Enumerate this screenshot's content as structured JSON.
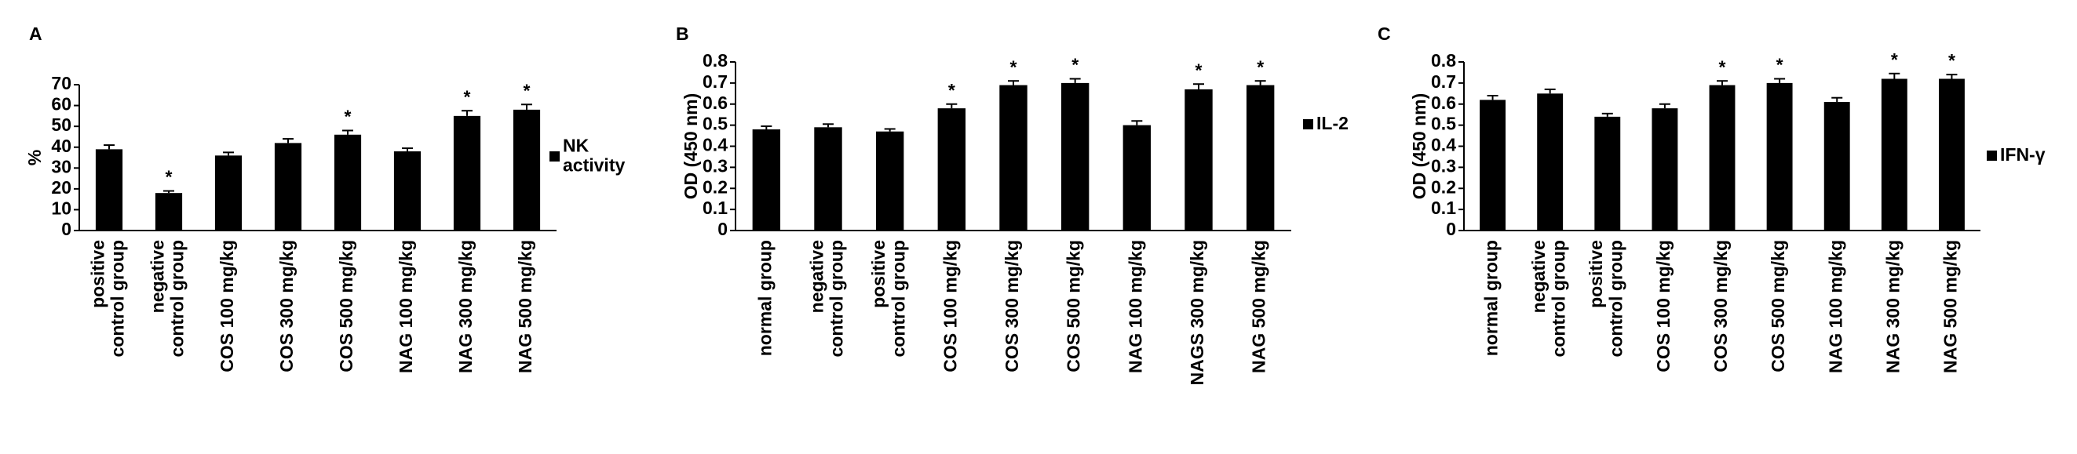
{
  "chart_data": [
    {
      "type": "bar",
      "label": "A",
      "ylabel": "%",
      "categories": [
        "positive control group",
        "negative control group",
        "COS 100 mg/kg",
        "COS 300 mg/kg",
        "COS 500 mg/kg",
        "NAG 100 mg/kg",
        "NAG 300 mg/kg",
        "NAG 500 mg/kg"
      ],
      "series": [
        {
          "name": "NK activity",
          "color": "#000000",
          "values": [
            39,
            18,
            36,
            42,
            46,
            38,
            55,
            58
          ],
          "errors": [
            2,
            1,
            1.5,
            2,
            2,
            1.5,
            2.5,
            2.5
          ]
        }
      ],
      "significance": [
        null,
        "*",
        null,
        null,
        "*",
        null,
        "*",
        "*"
      ],
      "ylim": [
        0,
        70
      ],
      "yticks": [
        0,
        10,
        20,
        30,
        40,
        50,
        60,
        70
      ]
    },
    {
      "type": "bar",
      "label": "B",
      "ylabel": "OD (450 nm)",
      "categories": [
        "normal group",
        "negative control group",
        "positive control group",
        "COS 100 mg/kg",
        "COS 300 mg/kg",
        "COS 500 mg/kg",
        "NAG 100 mg/kg",
        "NAGS 300 mg/kg",
        "NAG 500 mg/kg"
      ],
      "series": [
        {
          "name": "IL-2",
          "color": "#000000",
          "values": [
            0.48,
            0.49,
            0.47,
            0.58,
            0.69,
            0.7,
            0.5,
            0.67,
            0.69
          ],
          "errors": [
            0.015,
            0.015,
            0.012,
            0.02,
            0.02,
            0.02,
            0.02,
            0.025,
            0.02
          ]
        }
      ],
      "significance": [
        null,
        null,
        null,
        "*",
        "*",
        "*",
        null,
        "*",
        "*"
      ],
      "ylim": [
        0,
        0.8
      ],
      "yticks": [
        0,
        0.1,
        0.2,
        0.3,
        0.4,
        0.5,
        0.6,
        0.7,
        0.8
      ]
    },
    {
      "type": "bar",
      "label": "C",
      "ylabel": "OD (450 nm)",
      "categories": [
        "normal group",
        "negative control group",
        "positive control group",
        "COS 100 mg/kg",
        "COS 300 mg/kg",
        "COS 500 mg/kg",
        "NAG 100 mg/kg",
        "NAG 300 mg/kg",
        "NAG 500 mg/kg"
      ],
      "series": [
        {
          "name": "IFN-γ",
          "color": "#000000",
          "values": [
            0.62,
            0.65,
            0.54,
            0.58,
            0.69,
            0.7,
            0.61,
            0.72,
            0.72
          ],
          "errors": [
            0.02,
            0.02,
            0.015,
            0.02,
            0.02,
            0.02,
            0.02,
            0.025,
            0.02
          ]
        }
      ],
      "significance": [
        null,
        null,
        null,
        null,
        "*",
        "*",
        null,
        "*",
        "*"
      ],
      "ylim": [
        0,
        0.8
      ],
      "yticks": [
        0,
        0.1,
        0.2,
        0.3,
        0.4,
        0.5,
        0.6,
        0.7,
        0.8
      ]
    }
  ]
}
